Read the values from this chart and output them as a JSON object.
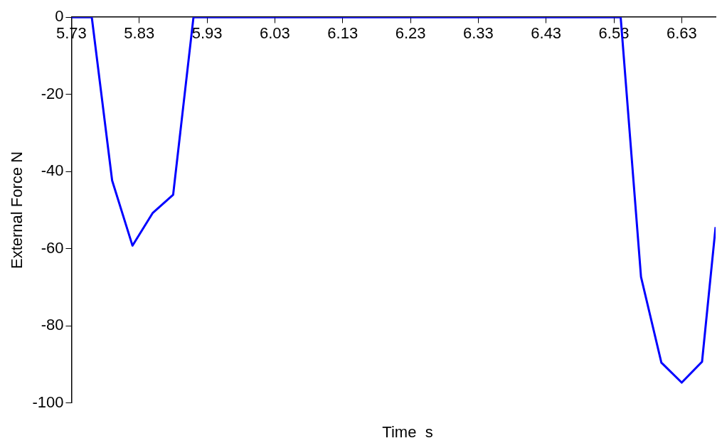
{
  "chart_data": {
    "type": "line",
    "xlabel": "Time  s",
    "ylabel": "External Force N",
    "x": [
      5.73,
      5.76,
      5.79,
      5.82,
      5.85,
      5.88,
      5.91,
      6.54,
      6.57,
      6.6,
      6.63,
      6.66,
      6.68
    ],
    "series": [
      {
        "color": "#0000ff",
        "values": [
          0,
          0,
          -42.3,
          -59.2,
          -50.7,
          -46,
          0,
          0,
          -67.3,
          -89.5,
          -94.7,
          -89.3,
          -54.4
        ]
      }
    ],
    "xlim": [
      5.73,
      6.68
    ],
    "xticks": [
      5.73,
      5.83,
      5.93,
      6.03,
      6.13,
      6.23,
      6.33,
      6.43,
      6.53,
      6.63
    ],
    "ylim": [
      -100,
      0
    ],
    "yticks": [
      -100,
      -80,
      -60,
      -40,
      -20,
      0
    ],
    "grid": false,
    "legend": false,
    "marker": "none",
    "line_style": "solid"
  }
}
